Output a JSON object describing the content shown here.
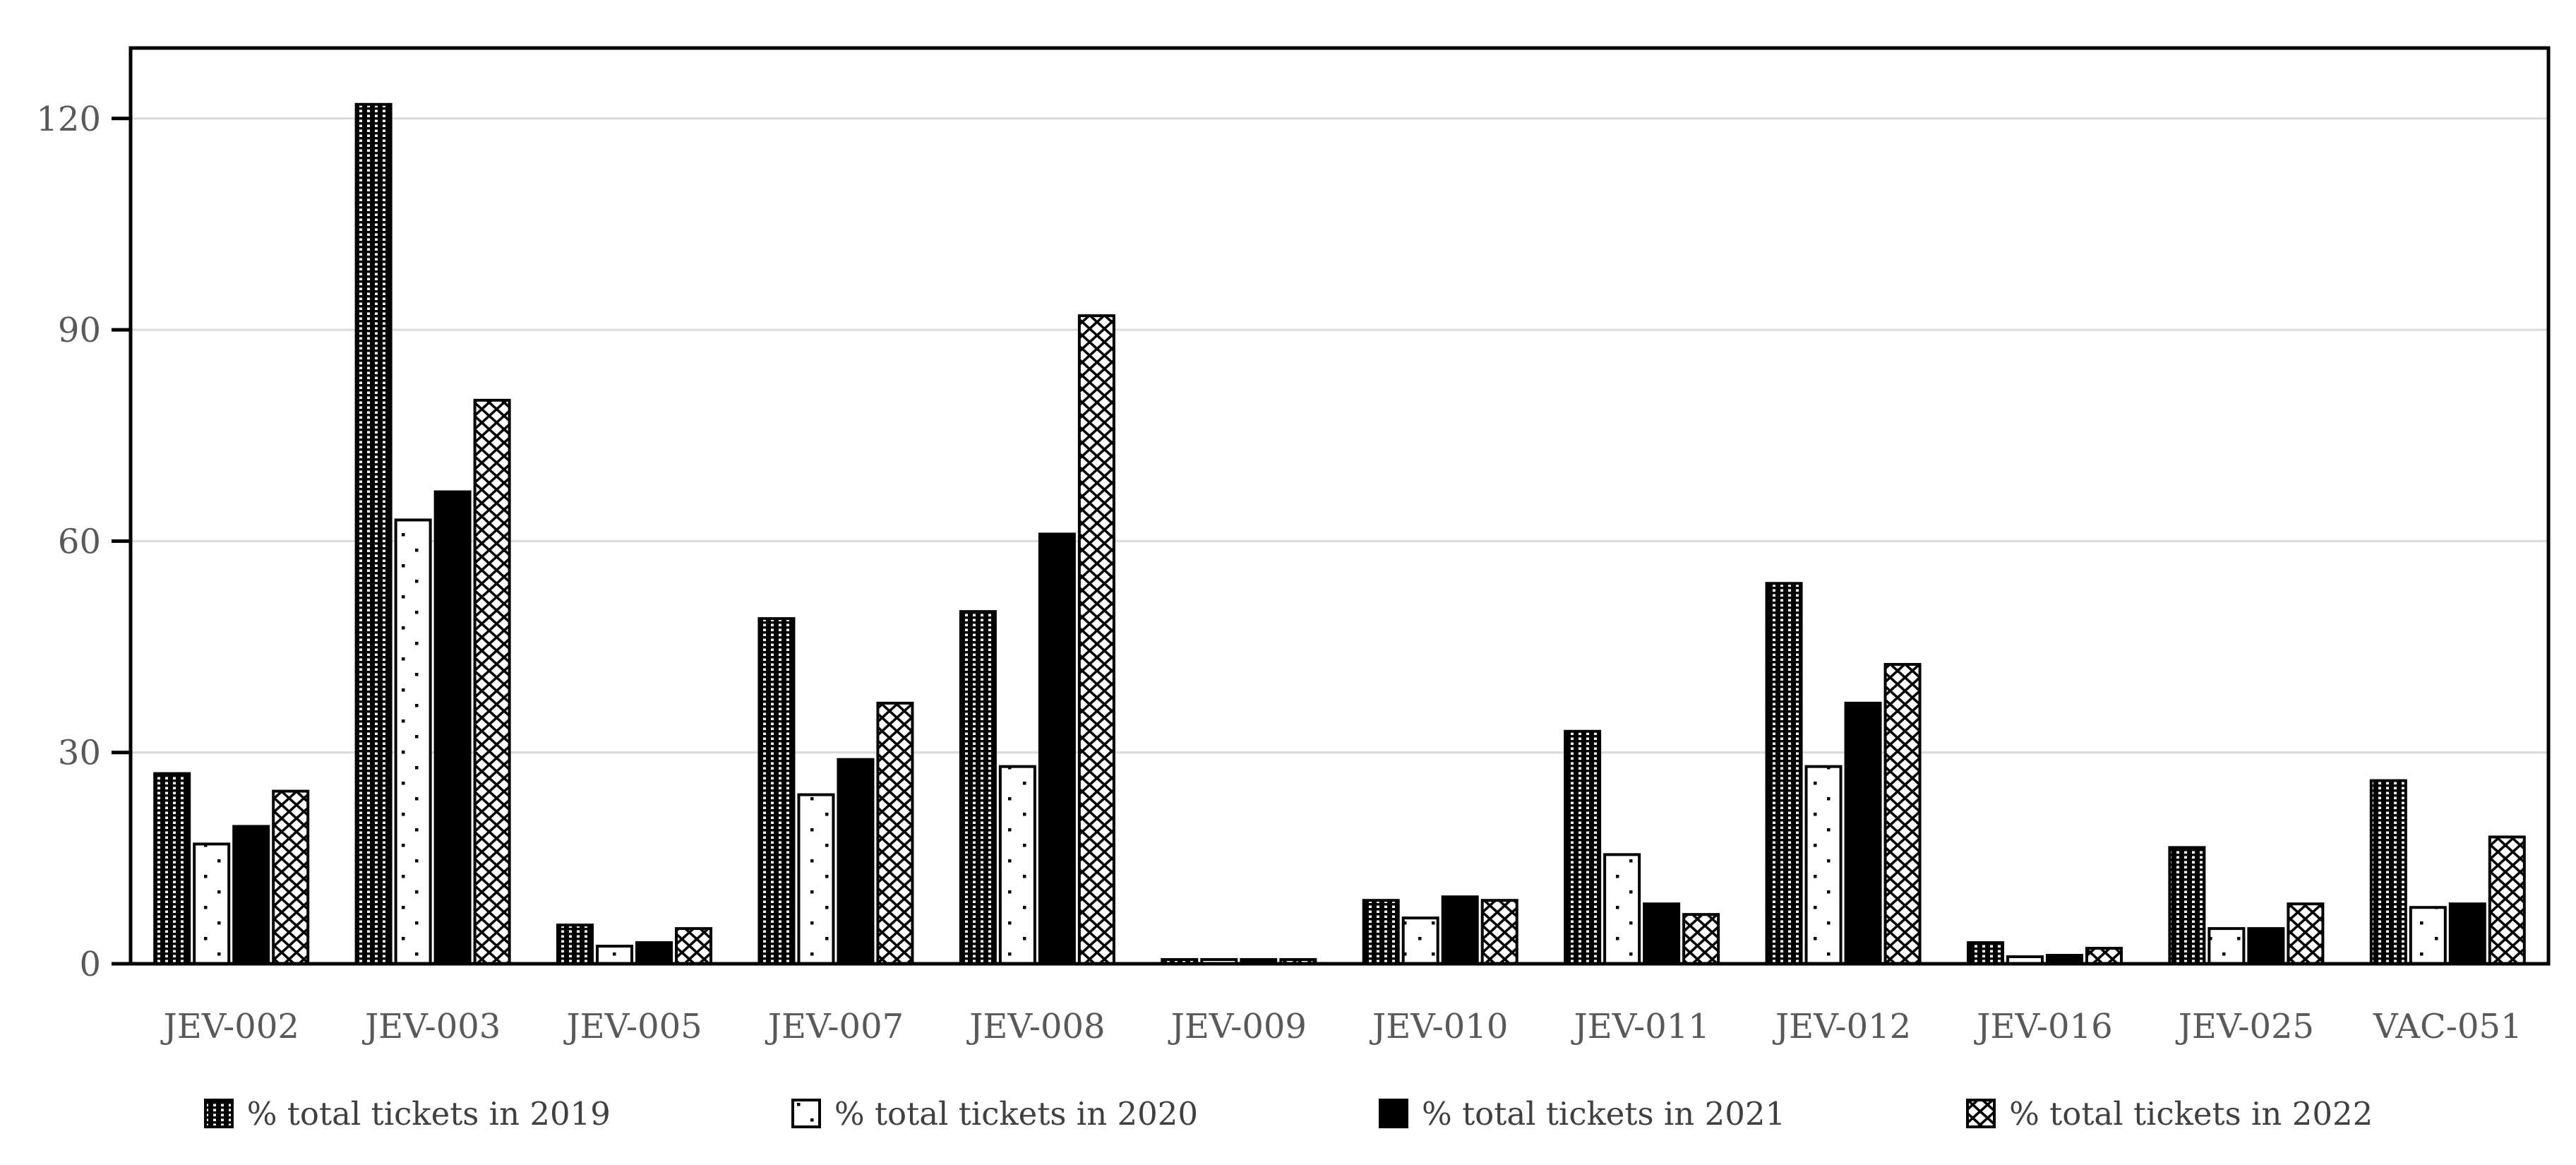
{
  "figure": {
    "background": "#ffffff"
  },
  "chart_data": {
    "type": "bar",
    "title": "",
    "xlabel": "",
    "ylabel": "",
    "categories": [
      "JEV-002",
      "JEV-003",
      "JEV-005",
      "JEV-007",
      "JEV-008",
      "JEV-009",
      "JEV-010",
      "JEV-011",
      "JEV-012",
      "JEV-016",
      "JEV-025",
      "VAC-051"
    ],
    "series": [
      {
        "name": "% total tickets in 2019",
        "pattern": "dot-grid-black",
        "values": [
          27,
          122,
          5.5,
          49,
          50,
          0.6,
          9,
          33,
          54,
          3,
          16.5,
          26
        ]
      },
      {
        "name": "% total tickets in 2020",
        "pattern": "sparse-dots-white",
        "values": [
          17,
          63,
          2.5,
          24,
          28,
          0.6,
          6.5,
          15.5,
          28,
          1,
          5,
          8
        ]
      },
      {
        "name": "% total tickets in 2021",
        "pattern": "solid-black",
        "values": [
          19.5,
          67,
          3,
          29,
          61,
          0.6,
          9.5,
          8.5,
          37,
          1.2,
          5,
          8.5
        ]
      },
      {
        "name": "% total tickets in 2022",
        "pattern": "diagonal-crosshatch",
        "values": [
          24.5,
          80,
          5,
          37,
          92,
          0.6,
          9,
          7,
          42.5,
          2.2,
          8.5,
          18
        ]
      }
    ],
    "ylim": [
      0,
      130
    ],
    "yticks": [
      0,
      30,
      60,
      90,
      120
    ],
    "grid": true,
    "legend_position": "bottom",
    "colors": {
      "bar_outline": "#000000",
      "bar_black": "#000000",
      "bar_white": "#ffffff",
      "gridline": "#d9d9d9",
      "axis": "#000000",
      "tick_label": "#595959",
      "category_label": "#595959",
      "legend_text": "#404040",
      "background": "#ffffff"
    }
  }
}
